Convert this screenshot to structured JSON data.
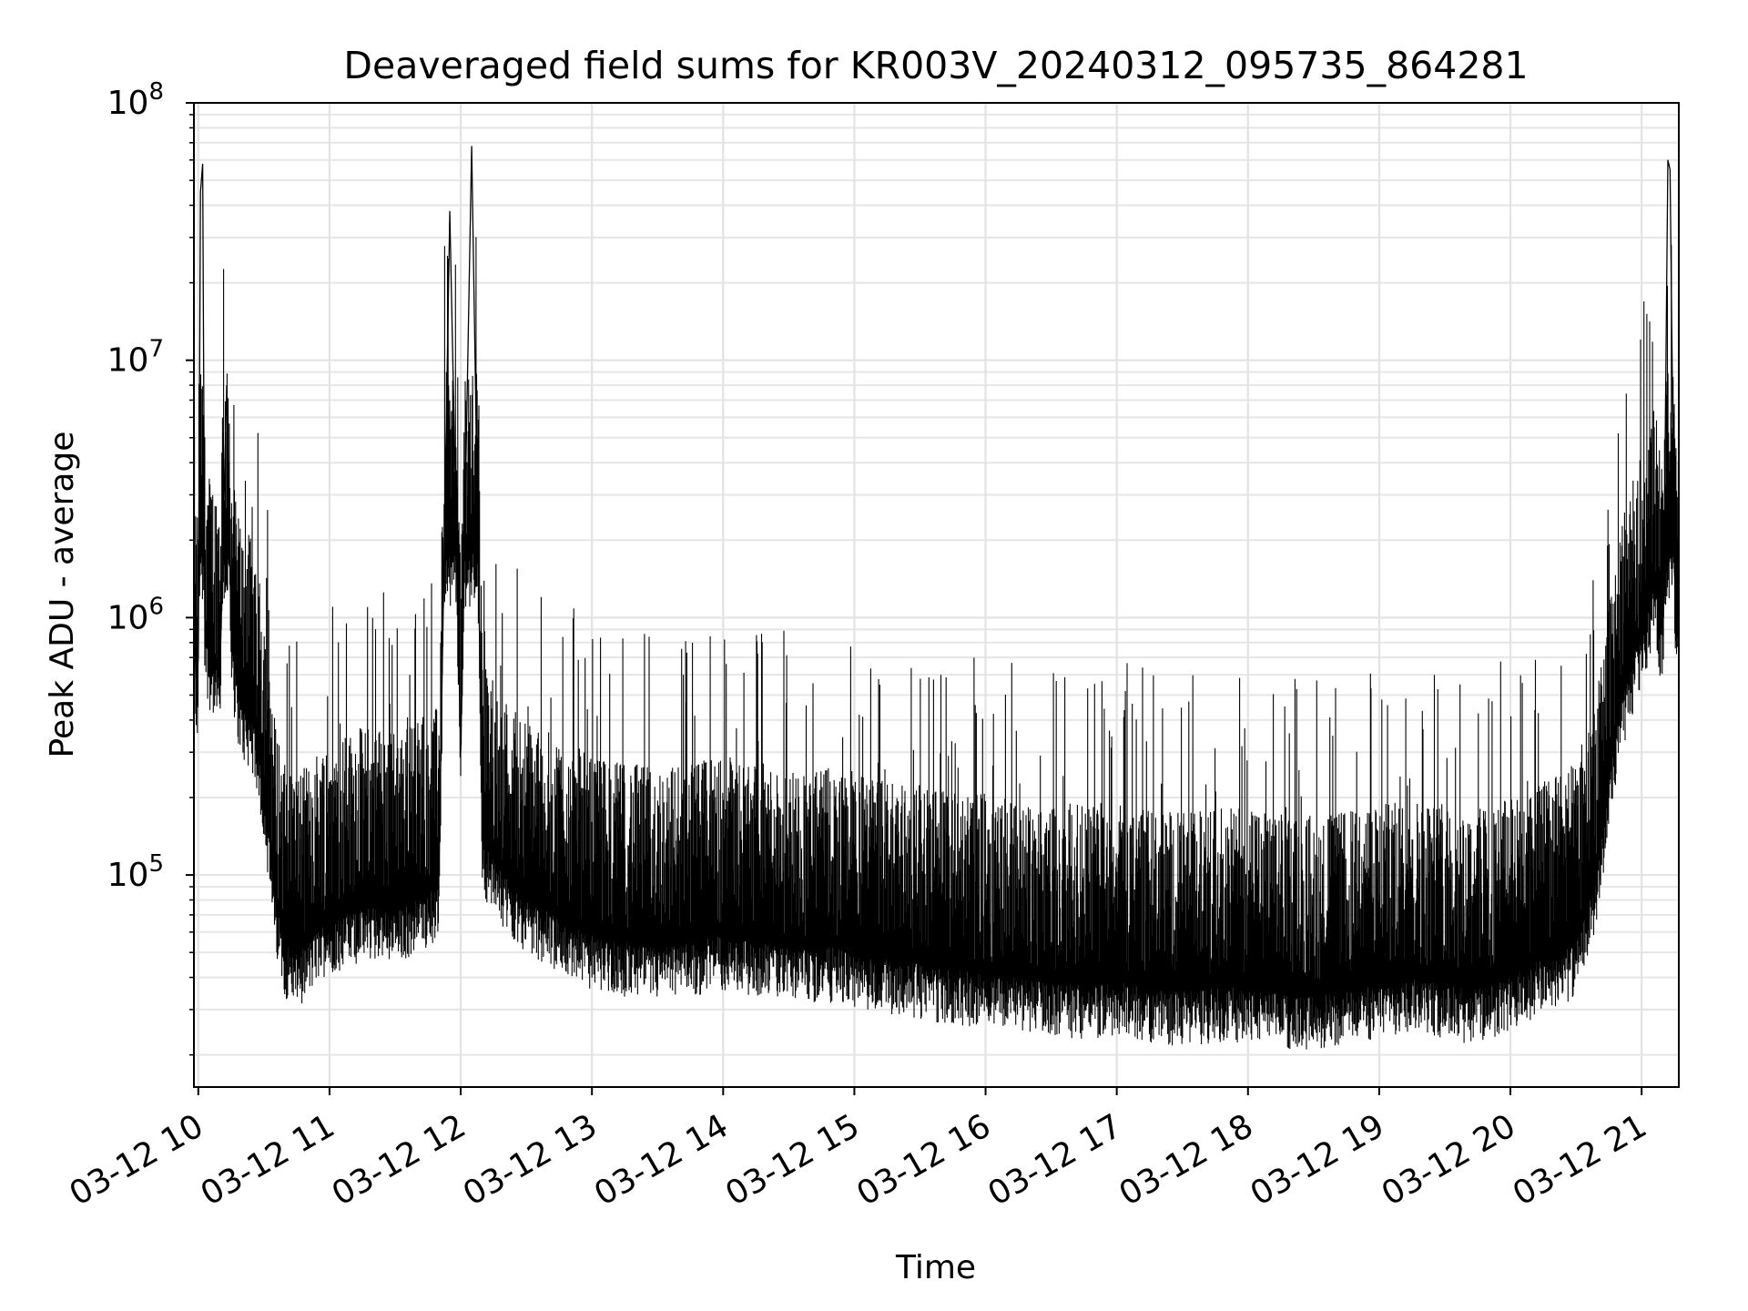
{
  "chart_data": {
    "type": "line",
    "title": "Deaveraged field sums for KR003V_20240312_095735_864281",
    "xlabel": "Time",
    "ylabel": "Peak ADU - average",
    "y_scale": "log",
    "ylim": [
      15000,
      100000000
    ],
    "xlim": [
      "2024-03-12 09:58",
      "2024-03-12 21:17"
    ],
    "grid": true,
    "line_color": "#000000",
    "x_ticks": [
      {
        "x": "2024-03-12 10:00",
        "label": "03-12 10"
      },
      {
        "x": "2024-03-12 11:00",
        "label": "03-12 11"
      },
      {
        "x": "2024-03-12 12:00",
        "label": "03-12 12"
      },
      {
        "x": "2024-03-12 13:00",
        "label": "03-12 13"
      },
      {
        "x": "2024-03-12 14:00",
        "label": "03-12 14"
      },
      {
        "x": "2024-03-12 15:00",
        "label": "03-12 15"
      },
      {
        "x": "2024-03-12 16:00",
        "label": "03-12 16"
      },
      {
        "x": "2024-03-12 17:00",
        "label": "03-12 17"
      },
      {
        "x": "2024-03-12 18:00",
        "label": "03-12 18"
      },
      {
        "x": "2024-03-12 19:00",
        "label": "03-12 19"
      },
      {
        "x": "2024-03-12 20:00",
        "label": "03-12 20"
      },
      {
        "x": "2024-03-12 21:00",
        "label": "03-12 21"
      }
    ],
    "y_ticks": [
      {
        "value": 100000,
        "base": "10",
        "exp": "5"
      },
      {
        "value": 1000000,
        "base": "10",
        "exp": "6"
      },
      {
        "value": 10000000,
        "base": "10",
        "exp": "7"
      },
      {
        "value": 100000000,
        "base": "10",
        "exp": "8"
      }
    ],
    "series": [
      {
        "x": [
          "2024-03-12 09:58",
          "2024-03-12 09:59",
          "2024-03-12 10:00",
          "2024-03-12 10:01",
          "2024-03-12 10:02",
          "2024-03-12 10:03",
          "2024-03-12 10:05",
          "2024-03-12 10:08",
          "2024-03-12 10:10",
          "2024-03-12 10:13",
          "2024-03-12 10:15",
          "2024-03-12 10:18",
          "2024-03-12 10:20",
          "2024-03-12 10:25",
          "2024-03-12 10:30",
          "2024-03-12 10:35",
          "2024-03-12 10:40",
          "2024-03-12 10:45",
          "2024-03-12 10:50",
          "2024-03-12 10:55",
          "2024-03-12 11:00",
          "2024-03-12 11:10",
          "2024-03-12 11:20",
          "2024-03-12 11:30",
          "2024-03-12 11:40",
          "2024-03-12 11:50",
          "2024-03-12 11:55",
          "2024-03-12 12:00",
          "2024-03-12 12:05",
          "2024-03-12 12:10",
          "2024-03-12 12:20",
          "2024-03-12 12:30",
          "2024-03-12 12:40",
          "2024-03-12 12:50",
          "2024-03-12 13:00",
          "2024-03-12 13:10",
          "2024-03-12 13:20",
          "2024-03-12 13:30",
          "2024-03-12 13:40",
          "2024-03-12 13:50",
          "2024-03-12 14:00",
          "2024-03-12 14:10",
          "2024-03-12 14:20",
          "2024-03-12 14:30",
          "2024-03-12 14:40",
          "2024-03-12 14:50",
          "2024-03-12 15:00",
          "2024-03-12 15:10",
          "2024-03-12 15:20",
          "2024-03-12 15:30",
          "2024-03-12 15:40",
          "2024-03-12 15:50",
          "2024-03-12 16:00",
          "2024-03-12 16:10",
          "2024-03-12 16:20",
          "2024-03-12 16:30",
          "2024-03-12 16:40",
          "2024-03-12 16:50",
          "2024-03-12 17:00",
          "2024-03-12 17:10",
          "2024-03-12 17:20",
          "2024-03-12 17:30",
          "2024-03-12 17:40",
          "2024-03-12 17:50",
          "2024-03-12 18:00",
          "2024-03-12 18:10",
          "2024-03-12 18:20",
          "2024-03-12 18:30",
          "2024-03-12 18:40",
          "2024-03-12 18:50",
          "2024-03-12 19:00",
          "2024-03-12 19:10",
          "2024-03-12 19:20",
          "2024-03-12 19:30",
          "2024-03-12 19:40",
          "2024-03-12 19:50",
          "2024-03-12 20:00",
          "2024-03-12 20:10",
          "2024-03-12 20:20",
          "2024-03-12 20:30",
          "2024-03-12 20:35",
          "2024-03-12 20:40",
          "2024-03-12 20:45",
          "2024-03-12 20:50",
          "2024-03-12 20:55",
          "2024-03-12 21:00",
          "2024-03-12 21:03",
          "2024-03-12 21:06",
          "2024-03-12 21:08",
          "2024-03-12 21:10",
          "2024-03-12 21:12",
          "2024-03-12 21:13",
          "2024-03-12 21:15",
          "2024-03-12 21:16"
        ],
        "y": [
          1500000,
          500000,
          700000,
          45000000,
          58000000,
          1000000,
          800000,
          700000,
          650000,
          8000000,
          900000,
          600000,
          500000,
          450000,
          250000,
          90000,
          60000,
          55000,
          60000,
          70000,
          75000,
          80000,
          85000,
          80000,
          90000,
          100000,
          38000000,
          300000,
          68000000,
          150000,
          110000,
          90000,
          80000,
          70000,
          65000,
          62000,
          60000,
          58000,
          60000,
          62000,
          65000,
          62000,
          60000,
          58000,
          57000,
          58000,
          55000,
          53000,
          52000,
          50000,
          48000,
          47000,
          46000,
          45000,
          44000,
          43000,
          42000,
          42000,
          43000,
          41000,
          40000,
          39000,
          40000,
          41000,
          40000,
          39000,
          38000,
          38000,
          39000,
          40000,
          42000,
          43000,
          44000,
          42000,
          40000,
          41000,
          45000,
          50000,
          55000,
          60000,
          80000,
          120000,
          250000,
          500000,
          700000,
          1000000,
          1200000,
          1500000,
          1100000,
          1000000,
          60000000,
          55000000,
          1500000,
          1000000
        ]
      }
    ]
  }
}
